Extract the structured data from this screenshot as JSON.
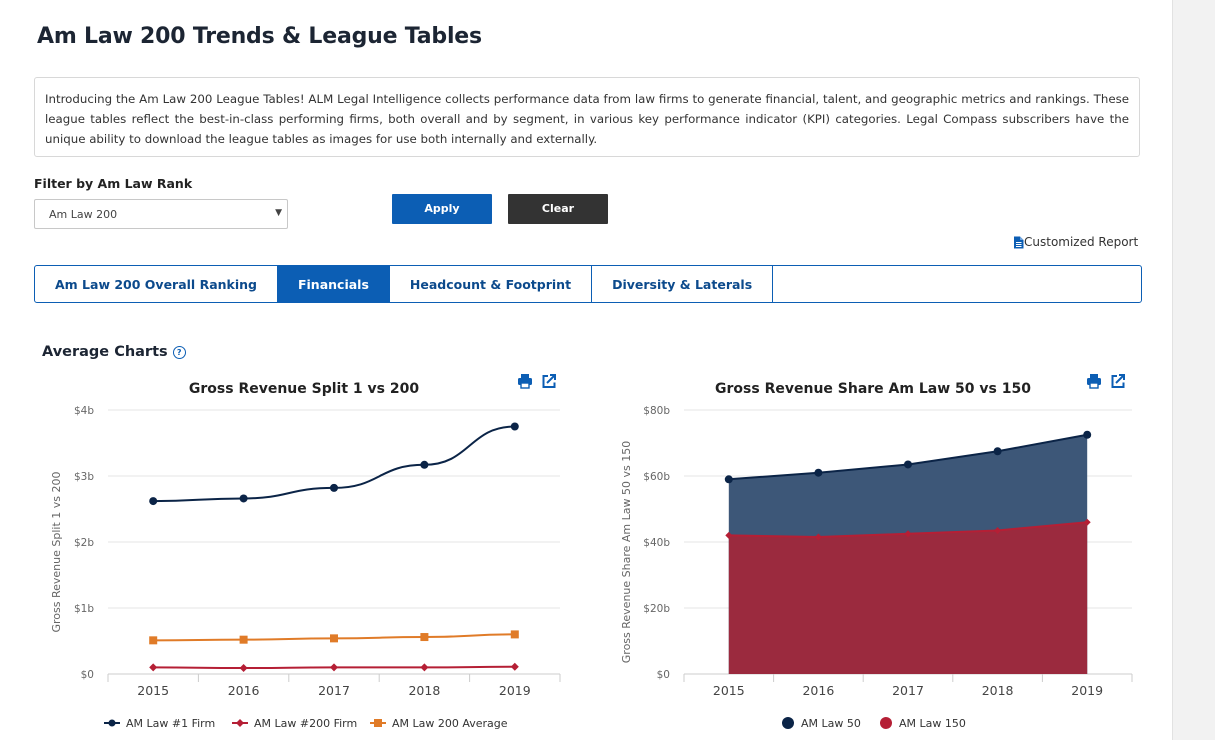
{
  "page": {
    "title": "Am Law 200 Trends & League Tables",
    "intro": "Introducing the Am Law 200 League Tables! ALM Legal Intelligence collects performance data from law firms to generate financial, talent, and geographic metrics and rankings. These league tables reflect the best-in-class performing firms, both overall and by segment, in various key performance indicator (KPI) categories. Legal Compass subscribers have the unique ability to download the league tables as images for use both internally and externally."
  },
  "filter": {
    "label": "Filter by Am Law Rank",
    "selected": "Am Law 200",
    "apply_label": "Apply",
    "clear_label": "Clear"
  },
  "customized_report": "Customized Report",
  "tabs": [
    {
      "label": "Am Law 200 Overall Ranking",
      "active": false
    },
    {
      "label": "Financials",
      "active": true
    },
    {
      "label": "Headcount & Footprint",
      "active": false
    },
    {
      "label": "Diversity & Laterals",
      "active": false
    }
  ],
  "section": {
    "title": "Average Charts",
    "help_icon": "question-circle-icon"
  },
  "colors": {
    "brand_blue": "#0c5eb4",
    "navy": "#0b2447",
    "red": "#b51f35",
    "orange": "#e07b28",
    "area_navy": "#3d5778",
    "area_red": "#9b2a3e"
  },
  "chart_data": [
    {
      "type": "line",
      "title": "Gross Revenue Split 1 vs 200",
      "ylabel": "Gross Revenue Split 1 vs 200",
      "xlabel": "",
      "x": [
        "2015",
        "2016",
        "2017",
        "2018",
        "2019"
      ],
      "yticks": [
        "$0",
        "$1b",
        "$2b",
        "$3b",
        "$4b"
      ],
      "ylim": [
        0,
        4
      ],
      "grid": true,
      "legend": "bottom",
      "series": [
        {
          "name": "AM Law #1 Firm",
          "values": [
            2.62,
            2.66,
            2.82,
            3.17,
            3.75
          ],
          "marker": "circle"
        },
        {
          "name": "AM Law #200 Firm",
          "values": [
            0.1,
            0.09,
            0.1,
            0.1,
            0.11
          ],
          "marker": "diamond"
        },
        {
          "name": "AM Law 200 Average",
          "values": [
            0.51,
            0.52,
            0.54,
            0.56,
            0.6
          ],
          "marker": "square"
        }
      ]
    },
    {
      "type": "area",
      "title": "Gross Revenue Share Am Law 50 vs 150",
      "ylabel": "Gross Revenue Share Am Law 50 vs 150",
      "xlabel": "",
      "x": [
        "2015",
        "2016",
        "2017",
        "2018",
        "2019"
      ],
      "yticks": [
        "$0",
        "$20b",
        "$40b",
        "$60b",
        "$80b"
      ],
      "ylim": [
        0,
        80
      ],
      "grid": true,
      "legend": "bottom",
      "series": [
        {
          "name": "AM Law 50",
          "values": [
            59,
            61,
            63.5,
            67.5,
            72.5
          ]
        },
        {
          "name": "AM Law 150",
          "values": [
            42,
            41.5,
            42.5,
            43.5,
            46
          ]
        }
      ]
    }
  ],
  "chart_icons": [
    "print-icon",
    "share-icon"
  ]
}
